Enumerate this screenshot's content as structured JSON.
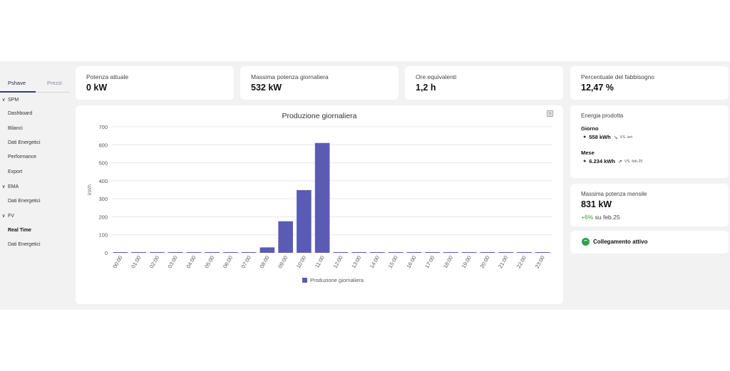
{
  "sidebar": {
    "tabs": [
      {
        "label": "Pshave",
        "active": true
      },
      {
        "label": "Prezzi",
        "active": false
      }
    ],
    "groups": [
      {
        "label": "SPM",
        "items": [
          "Dashboard",
          "Bilanci",
          "Dati Energetici",
          "Performance",
          "Export"
        ]
      },
      {
        "label": "EMA",
        "items": [
          "Dati Energetici"
        ]
      },
      {
        "label": "FV",
        "items": [
          "Real Time",
          "Dati Energetici"
        ]
      }
    ],
    "active_item": "Real Time"
  },
  "kpis": [
    {
      "label": "Potenza attuale",
      "value": "0 kW"
    },
    {
      "label": "Massima potenza giornaliera",
      "value": "532 kW"
    },
    {
      "label": "Ore equivalenti",
      "value": "1,2 h"
    },
    {
      "label": "Percentuale del fabbisogno",
      "value": "12,47 %"
    }
  ],
  "energia_prodotta": {
    "title": "Energia prodotta",
    "giorno": {
      "label": "Giorno",
      "value": "558 kWh",
      "vs": "VS. ieri",
      "trend": "down"
    },
    "mese": {
      "label": "Mese",
      "value": "6.234 kWh",
      "vs": "VS. feb.25",
      "trend": "up"
    }
  },
  "massima_mensile": {
    "label": "Massima potenza mensile",
    "value": "831 kW",
    "delta": "+6%",
    "delta_suffix": "su feb.25"
  },
  "connection": {
    "label": "Collegamento attivo",
    "color": "#2aa44a"
  },
  "colors": {
    "bar": "#5b5bb5",
    "grid": "#e8e8ee",
    "positive": "#3a9a3a"
  },
  "chart_data": {
    "type": "bar",
    "title": "Produzione giornaliera",
    "ylabel": "kWh",
    "xlabel": "",
    "ylim": [
      0,
      700
    ],
    "yticks": [
      0,
      100,
      200,
      300,
      400,
      500,
      600,
      700
    ],
    "categories": [
      "00:00",
      "01:00",
      "02:00",
      "03:00",
      "04:00",
      "05:00",
      "06:00",
      "07:00",
      "08:00",
      "09:00",
      "10:00",
      "11:00",
      "12:00",
      "13:00",
      "14:00",
      "15:00",
      "16:00",
      "17:00",
      "18:00",
      "19:00",
      "20:00",
      "21:00",
      "22:00",
      "23:00"
    ],
    "series": [
      {
        "name": "Produzione giornaliera",
        "values": [
          0,
          0,
          0,
          0,
          0,
          0,
          0,
          1,
          30,
          175,
          348,
          610,
          0,
          0,
          0,
          0,
          0,
          0,
          0,
          0,
          0,
          0,
          0,
          0
        ]
      }
    ],
    "legend_position": "bottom",
    "grid": true
  }
}
